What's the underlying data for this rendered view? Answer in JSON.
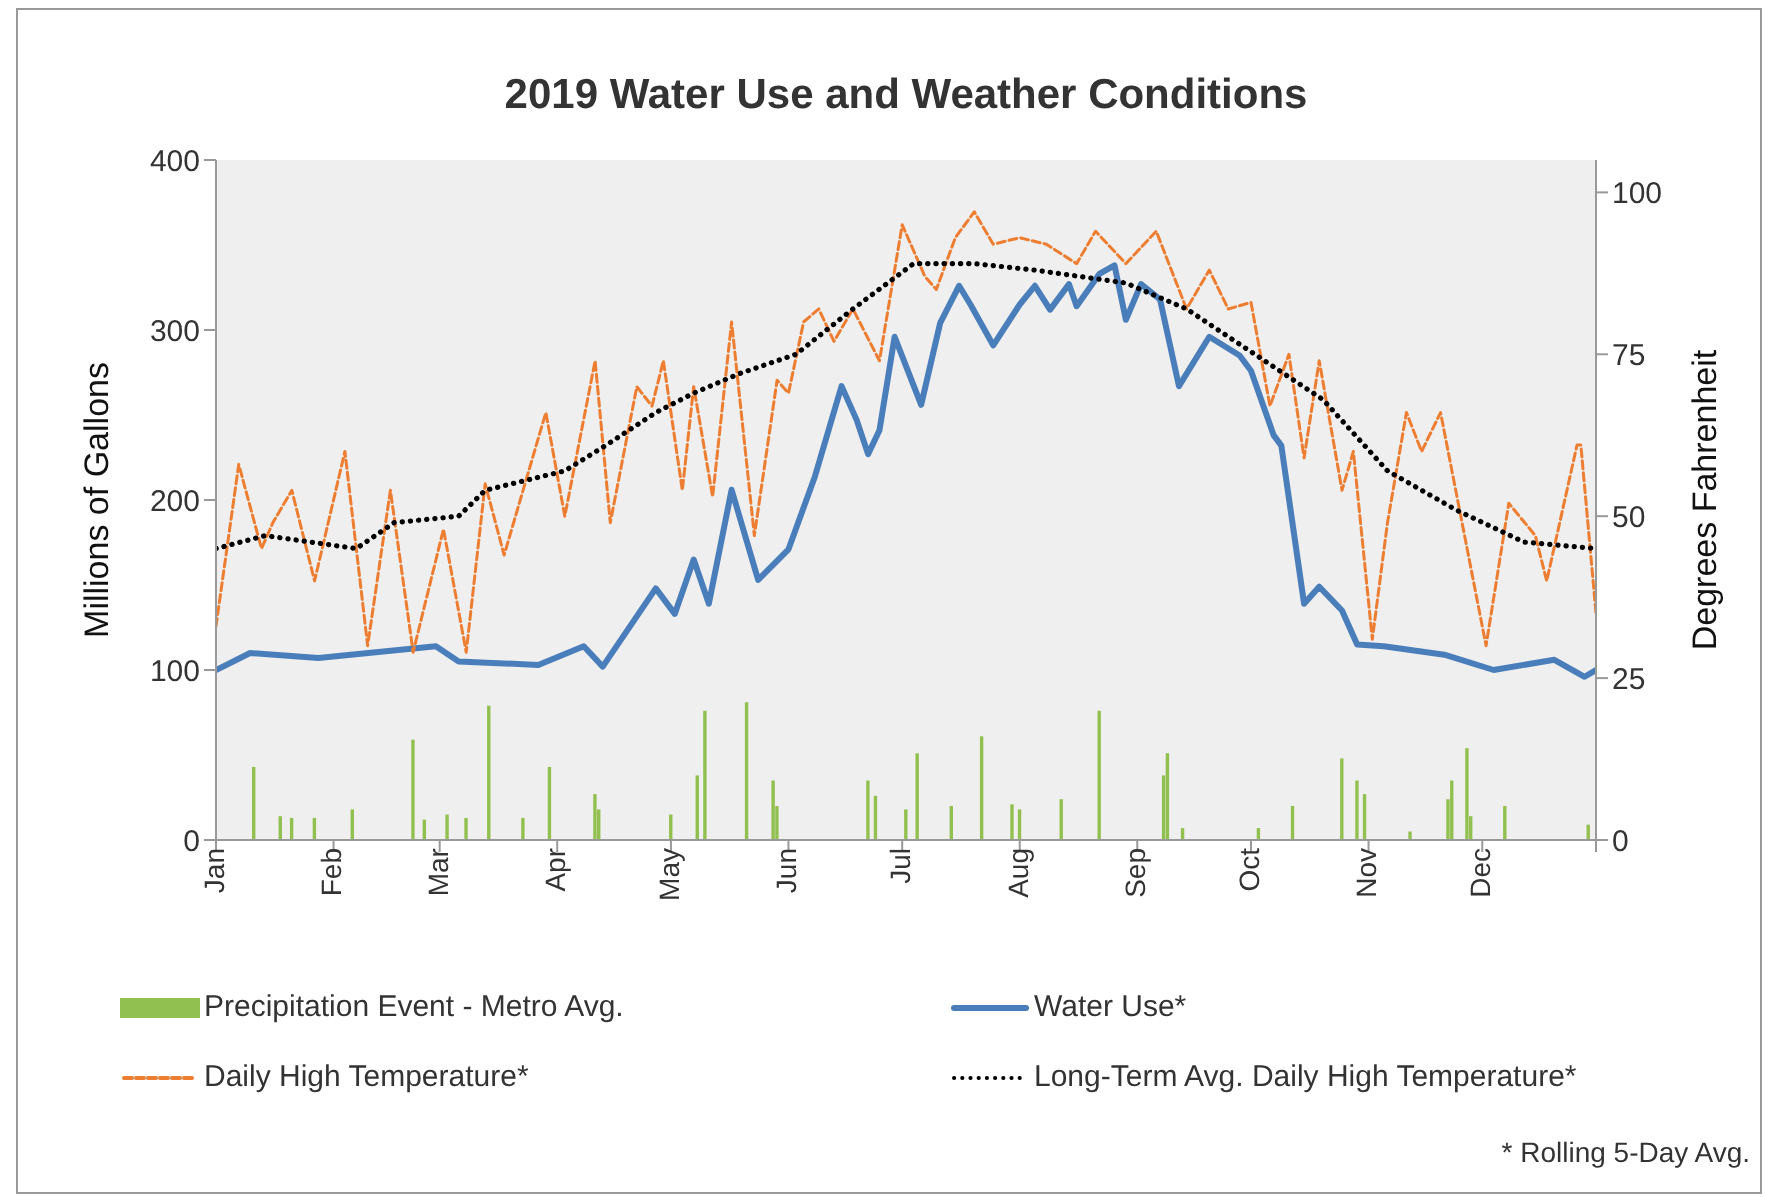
{
  "chart_data": {
    "type": "line",
    "title": "2019 Water Use and Weather Conditions",
    "ylabel": "Millions of Gallons",
    "y2label": "Degrees Fahrenheit",
    "xlim": [
      "2019-01-01",
      "2019-12-31"
    ],
    "xticks": [
      {
        "value": "2019-01-01",
        "label": "Jan"
      },
      {
        "value": "2019-02-01",
        "label": "Feb"
      },
      {
        "value": "2019-03-01",
        "label": "Mar"
      },
      {
        "value": "2019-04-01",
        "label": "Apr"
      },
      {
        "value": "2019-05-01",
        "label": "May"
      },
      {
        "value": "2019-06-01",
        "label": "Jun"
      },
      {
        "value": "2019-07-01",
        "label": "Jul"
      },
      {
        "value": "2019-08-01",
        "label": "Aug"
      },
      {
        "value": "2019-09-01",
        "label": "Sep"
      },
      {
        "value": "2019-10-01",
        "label": "Oct"
      },
      {
        "value": "2019-11-01",
        "label": "Nov"
      },
      {
        "value": "2019-12-01",
        "label": "Dec"
      },
      {
        "value": "2019-12-31",
        "label": null
      }
    ],
    "ylim": [
      0,
      400
    ],
    "yticks": [
      0,
      100,
      200,
      300,
      400
    ],
    "y2lim": [
      0,
      105
    ],
    "y2ticks": [
      0,
      25,
      50,
      75,
      100
    ],
    "legend": "bottom",
    "annotations": [
      "* Rolling 5-Day Avg."
    ],
    "series": [
      {
        "name": "Precipitation Event - Metro Avg.",
        "type": "bar",
        "color": "#92c050",
        "x": [
          "2019-01-11",
          "2019-01-18",
          "2019-01-21",
          "2019-01-27",
          "2019-02-06",
          "2019-02-22",
          "2019-02-25",
          "2019-03-03",
          "2019-03-08",
          "2019-03-14",
          "2019-03-23",
          "2019-03-30",
          "2019-04-11",
          "2019-04-12",
          "2019-05-01",
          "2019-05-08",
          "2019-05-10",
          "2019-05-21",
          "2019-05-28",
          "2019-05-29",
          "2019-06-22",
          "2019-06-24",
          "2019-07-02",
          "2019-07-05",
          "2019-07-14",
          "2019-07-22",
          "2019-07-30",
          "2019-08-01",
          "2019-08-12",
          "2019-08-22",
          "2019-09-08",
          "2019-09-09",
          "2019-09-13",
          "2019-10-03",
          "2019-10-12",
          "2019-10-25",
          "2019-10-29",
          "2019-10-31",
          "2019-11-12",
          "2019-11-22",
          "2019-11-23",
          "2019-11-27",
          "2019-11-28",
          "2019-12-07",
          "2019-12-29"
        ],
        "values": [
          43,
          14,
          13,
          13,
          18,
          59,
          12,
          15,
          13,
          79,
          13,
          43,
          27,
          18,
          15,
          38,
          76,
          81,
          35,
          20,
          35,
          26,
          18,
          51,
          20,
          61,
          21,
          18,
          24,
          76,
          38,
          51,
          7,
          7,
          20,
          48,
          35,
          27,
          5,
          24,
          35,
          54,
          14,
          20,
          9
        ]
      },
      {
        "name": "Water Use*",
        "color": "#4a7ebb",
        "line_style": "solid",
        "x": [
          "2019-01-01",
          "2019-01-10",
          "2019-01-28",
          "2019-02-28",
          "2019-03-06",
          "2019-03-27",
          "2019-04-08",
          "2019-04-13",
          "2019-04-27",
          "2019-05-02",
          "2019-05-07",
          "2019-05-11",
          "2019-05-17",
          "2019-05-24",
          "2019-06-01",
          "2019-06-08",
          "2019-06-15",
          "2019-06-19",
          "2019-06-22",
          "2019-06-25",
          "2019-06-29",
          "2019-07-06",
          "2019-07-11",
          "2019-07-16",
          "2019-07-19",
          "2019-07-25",
          "2019-08-01",
          "2019-08-05",
          "2019-08-09",
          "2019-08-14",
          "2019-08-16",
          "2019-08-22",
          "2019-08-26",
          "2019-08-29",
          "2019-09-02",
          "2019-09-07",
          "2019-09-12",
          "2019-09-20",
          "2019-09-28",
          "2019-10-01",
          "2019-10-07",
          "2019-10-09",
          "2019-10-15",
          "2019-10-19",
          "2019-10-25",
          "2019-10-29",
          "2019-11-05",
          "2019-11-21",
          "2019-12-04",
          "2019-12-20",
          "2019-12-28",
          "2019-12-31"
        ],
        "values": [
          100,
          110,
          107,
          114,
          105,
          103,
          114,
          102,
          148,
          133,
          165,
          139,
          206,
          153,
          171,
          214,
          267,
          247,
          227,
          241,
          296,
          256,
          304,
          326,
          315,
          291,
          315,
          326,
          312,
          327,
          314,
          333,
          338,
          306,
          327,
          318,
          267,
          296,
          285,
          276,
          238,
          232,
          139,
          149,
          135,
          115,
          114,
          109,
          100,
          106,
          96,
          100
        ]
      },
      {
        "name": "Daily High Temperature*",
        "axis": "y2",
        "color": "#ed7d31",
        "line_style": "dashed",
        "x": [
          "2019-01-01",
          "2019-01-07",
          "2019-01-13",
          "2019-01-16",
          "2019-01-21",
          "2019-01-27",
          "2019-02-04",
          "2019-02-10",
          "2019-02-16",
          "2019-02-22",
          "2019-03-02",
          "2019-03-08",
          "2019-03-13",
          "2019-03-18",
          "2019-03-29",
          "2019-04-03",
          "2019-04-11",
          "2019-04-15",
          "2019-04-22",
          "2019-04-26",
          "2019-04-29",
          "2019-05-01",
          "2019-05-04",
          "2019-05-07",
          "2019-05-12",
          "2019-05-17",
          "2019-05-23",
          "2019-05-29",
          "2019-06-01",
          "2019-06-05",
          "2019-06-09",
          "2019-06-13",
          "2019-06-18",
          "2019-06-25",
          "2019-07-01",
          "2019-07-07",
          "2019-07-10",
          "2019-07-15",
          "2019-07-20",
          "2019-07-25",
          "2019-08-01",
          "2019-08-08",
          "2019-08-16",
          "2019-08-21",
          "2019-08-29",
          "2019-09-06",
          "2019-09-14",
          "2019-09-20",
          "2019-09-25",
          "2019-10-01",
          "2019-10-06",
          "2019-10-11",
          "2019-10-15",
          "2019-10-19",
          "2019-10-25",
          "2019-10-28",
          "2019-11-02",
          "2019-11-06",
          "2019-11-11",
          "2019-11-15",
          "2019-11-20",
          "2019-11-26",
          "2019-12-02",
          "2019-12-08",
          "2019-12-15",
          "2019-12-18",
          "2019-12-26",
          "2019-12-27",
          "2019-12-31"
        ],
        "values": [
          33,
          58,
          45,
          49,
          54,
          40,
          60,
          30,
          54,
          29,
          48,
          29,
          55,
          44,
          66,
          50,
          74,
          49,
          70,
          67,
          74,
          66,
          54,
          70,
          53,
          80,
          47,
          71,
          69,
          80,
          82,
          77,
          82,
          74,
          95,
          87,
          85,
          93,
          97,
          92,
          93,
          92,
          89,
          94,
          89,
          94,
          82,
          88,
          82,
          83,
          67,
          75,
          59,
          74,
          54,
          60,
          31,
          49,
          66,
          60,
          66,
          48,
          30,
          52,
          47,
          40,
          61,
          61,
          35
        ]
      },
      {
        "name": "Long-Term Avg. Daily High Temperature*",
        "axis": "y2",
        "color": "#000000",
        "line_style": "dotted",
        "x": [
          "2019-01-01",
          "2019-01-14",
          "2019-02-07",
          "2019-02-17",
          "2019-03-06",
          "2019-03-13",
          "2019-04-03",
          "2019-04-14",
          "2019-04-27",
          "2019-05-07",
          "2019-05-19",
          "2019-06-03",
          "2019-06-18",
          "2019-07-04",
          "2019-07-20",
          "2019-08-05",
          "2019-08-29",
          "2019-09-14",
          "2019-10-02",
          "2019-10-20",
          "2019-11-06",
          "2019-11-24",
          "2019-12-12",
          "2019-12-31"
        ],
        "values": [
          45,
          47,
          45,
          49,
          50,
          54,
          57,
          61,
          66,
          69,
          72,
          75,
          82,
          89,
          89,
          88,
          86,
          82,
          75,
          68,
          57,
          51,
          46,
          45
        ]
      }
    ]
  }
}
